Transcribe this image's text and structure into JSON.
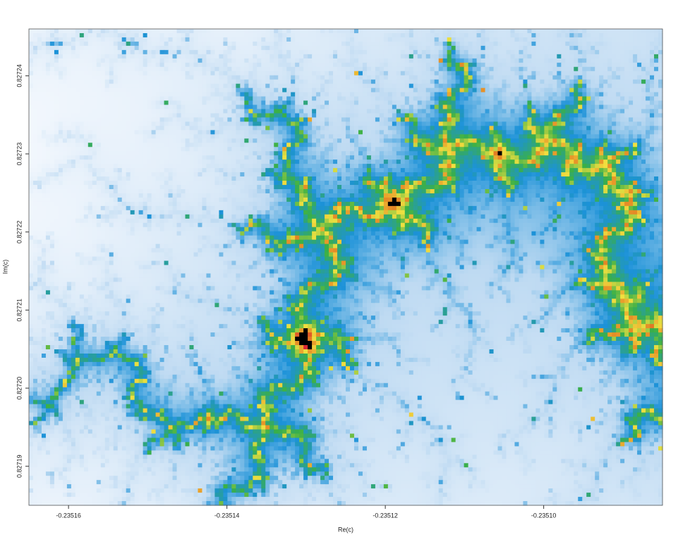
{
  "chart_data": {
    "type": "escape-time-image",
    "xlabel": "Re(c)",
    "ylabel": "Im(c)",
    "xlim": [
      -0.235165,
      -0.235085
    ],
    "xticks": [
      -0.23516,
      -0.23514,
      -0.23512,
      {
        "value": -0.2351,
        "label": "-0.23510"
      }
    ],
    "ylim": [
      0.827185,
      0.827246
    ],
    "yticks": [
      0.82719,
      {
        "value": 0.8272,
        "label": "0.82720"
      },
      0.82721,
      0.82722,
      0.82723,
      0.82724
    ]
  }
}
